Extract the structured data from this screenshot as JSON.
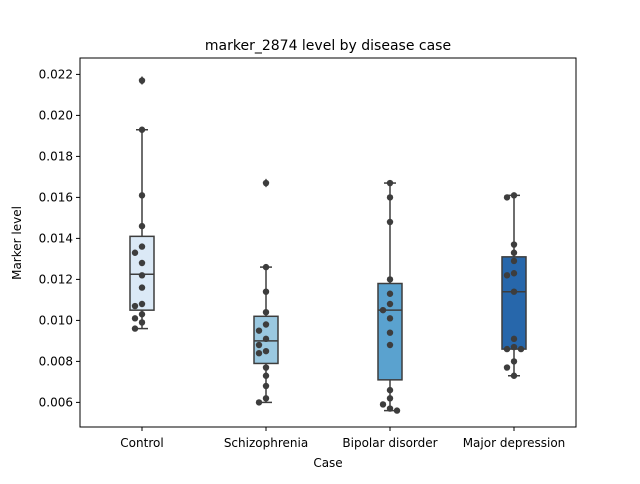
{
  "chart_data": {
    "type": "box",
    "title": "marker_2874 level by disease case",
    "xlabel": "Case",
    "ylabel": "Marker level",
    "categories": [
      "Control",
      "Schizophrenia",
      "Bipolar disorder",
      "Major depression"
    ],
    "ylim": [
      0.0048,
      0.0228
    ],
    "yticks": [
      0.006,
      0.008,
      0.01,
      0.012,
      0.014,
      0.016,
      0.018,
      0.02,
      0.022
    ],
    "ytick_labels": [
      "0.006",
      "0.008",
      "0.010",
      "0.012",
      "0.014",
      "0.016",
      "0.018",
      "0.020",
      "0.022"
    ],
    "grid": false,
    "colors": [
      "#dbe9f6",
      "#9ac8e0",
      "#5aa2cf",
      "#2767ab"
    ],
    "boxes": [
      {
        "category": "Control",
        "whisker_low": 0.0096,
        "q1": 0.0105,
        "median": 0.01225,
        "q3": 0.0141,
        "whisker_high": 0.0193,
        "outliers": [
          0.0217
        ]
      },
      {
        "category": "Schizophrenia",
        "whisker_low": 0.006,
        "q1": 0.0079,
        "median": 0.009,
        "q3": 0.0102,
        "whisker_high": 0.0126,
        "outliers": [
          0.0167
        ]
      },
      {
        "category": "Bipolar disorder",
        "whisker_low": 0.0056,
        "q1": 0.0071,
        "median": 0.0105,
        "q3": 0.0118,
        "whisker_high": 0.0167,
        "outliers": []
      },
      {
        "category": "Major depression",
        "whisker_low": 0.0073,
        "q1": 0.0086,
        "median": 0.0114,
        "q3": 0.0131,
        "whisker_high": 0.0161,
        "outliers": []
      }
    ],
    "points": [
      [
        0.0217,
        0.0193,
        0.0161,
        0.0146,
        0.0136,
        0.0133,
        0.0128,
        0.0122,
        0.0116,
        0.0108,
        0.0107,
        0.0103,
        0.0101,
        0.0099,
        0.0096
      ],
      [
        0.0167,
        0.0126,
        0.0114,
        0.0104,
        0.0098,
        0.0095,
        0.0091,
        0.0088,
        0.0085,
        0.0084,
        0.0077,
        0.0073,
        0.0068,
        0.0062,
        0.006
      ],
      [
        0.0167,
        0.016,
        0.0148,
        0.012,
        0.0113,
        0.0108,
        0.0105,
        0.0101,
        0.0094,
        0.0088,
        0.0066,
        0.0062,
        0.0059,
        0.0057,
        0.0056
      ],
      [
        0.0161,
        0.016,
        0.0137,
        0.0133,
        0.0129,
        0.0123,
        0.0122,
        0.0114,
        0.0091,
        0.0087,
        0.0086,
        0.0086,
        0.008,
        0.0077,
        0.0073
      ]
    ]
  }
}
